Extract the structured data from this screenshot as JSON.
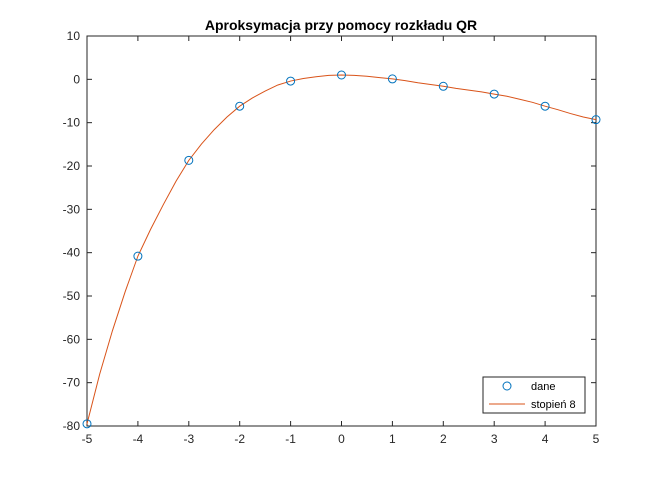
{
  "chart_data": {
    "type": "line",
    "title": "Aproksymacja przy pomocy rozkładu QR",
    "xlabel": "",
    "ylabel": "",
    "xlim": [
      -5,
      5
    ],
    "ylim": [
      -80,
      10
    ],
    "xticks": [
      -5,
      -4,
      -3,
      -2,
      -1,
      0,
      1,
      2,
      3,
      4,
      5
    ],
    "yticks": [
      -80,
      -70,
      -60,
      -50,
      -40,
      -30,
      -20,
      -10,
      0,
      10
    ],
    "grid": false,
    "legend_position": "bottom-right",
    "series": [
      {
        "name": "dane",
        "style": "markers",
        "marker": "circle",
        "color": "#0072BD",
        "x": [
          -5,
          -4,
          -3,
          -2,
          -1,
          0,
          1,
          2,
          3,
          4,
          5
        ],
        "y": [
          -79.5,
          -40.8,
          -18.7,
          -6.2,
          -0.4,
          1.0,
          0.1,
          -1.6,
          -3.4,
          -6.2,
          -9.3
        ]
      },
      {
        "name": "stopień 8",
        "style": "line",
        "color": "#D95319",
        "x": [
          -5,
          -4.75,
          -4.5,
          -4.25,
          -4,
          -3.75,
          -3.5,
          -3.25,
          -3,
          -2.75,
          -2.5,
          -2.25,
          -2,
          -1.75,
          -1.5,
          -1.25,
          -1,
          -0.75,
          -0.5,
          -0.25,
          0,
          0.25,
          0.5,
          0.75,
          1,
          1.25,
          1.5,
          1.75,
          2,
          2.25,
          2.5,
          2.75,
          3,
          3.25,
          3.5,
          3.75,
          4,
          4.25,
          4.5,
          4.75,
          5
        ],
        "y": [
          -79.5,
          -68.0,
          -58.0,
          -49.0,
          -40.8,
          -34.6,
          -28.9,
          -23.5,
          -18.7,
          -14.9,
          -11.6,
          -8.7,
          -6.2,
          -4.3,
          -2.7,
          -1.3,
          -0.4,
          0.2,
          0.6,
          0.9,
          1.0,
          0.9,
          0.7,
          0.4,
          0.1,
          -0.3,
          -0.8,
          -1.2,
          -1.6,
          -2.1,
          -2.5,
          -2.9,
          -3.4,
          -3.9,
          -4.6,
          -5.3,
          -6.2,
          -7.0,
          -7.9,
          -8.7,
          -9.3
        ]
      }
    ]
  }
}
